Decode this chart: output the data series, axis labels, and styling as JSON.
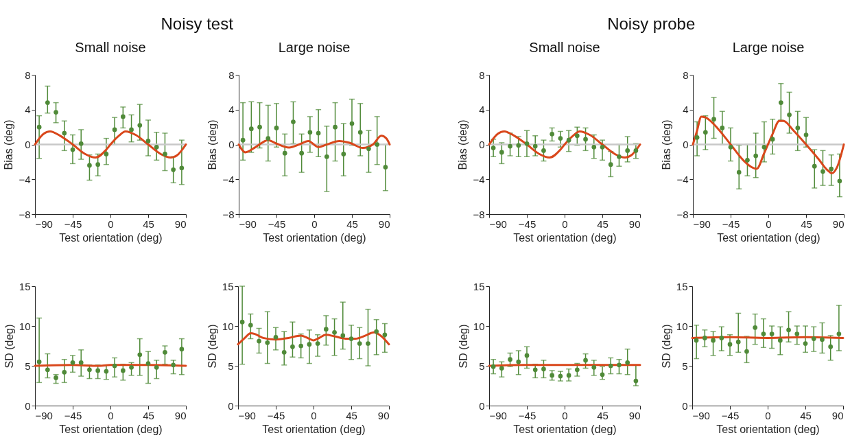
{
  "chart_data": [
    {
      "type": "scatter",
      "title": "Small noise",
      "annotations": [
        "Noisy test"
      ],
      "xlabel": "Test orientation (deg)",
      "ylabel": "Bias (deg)",
      "xlim": [
        -90,
        90
      ],
      "xticks": [
        -90,
        -45,
        0,
        45,
        90
      ],
      "ylim": [
        -8,
        8
      ],
      "yticks": [
        -8,
        -4,
        0,
        4,
        8
      ],
      "x": [
        -85,
        -75,
        -65,
        -55,
        -45,
        -35,
        -25,
        -15,
        -5,
        5,
        15,
        25,
        35,
        45,
        55,
        65,
        75,
        85
      ],
      "ref_lines": [
        {
          "axis": "y",
          "value": 0,
          "color": "#c8c8c8"
        }
      ],
      "series": [
        {
          "type": "scatter",
          "marker": "circle",
          "color": "#4f8a38",
          "values": [
            2.0,
            4.8,
            3.7,
            1.3,
            -0.6,
            0.1,
            -2.4,
            -2.3,
            -1.1,
            1.7,
            3.2,
            1.7,
            2.2,
            0.4,
            -0.3,
            -1.1,
            -2.9,
            -2.7
          ],
          "errors": [
            [
              -1.6,
              3.3
            ],
            [
              3.6,
              6.7
            ],
            [
              2.5,
              4.8
            ],
            [
              -0.7,
              2.7
            ],
            [
              -2.2,
              1.1
            ],
            [
              -1.7,
              1.7
            ],
            [
              -4.1,
              -1.2
            ],
            [
              -3.6,
              -1.1
            ],
            [
              -2.3,
              0.7
            ],
            [
              0,
              3.1
            ],
            [
              1.9,
              4.3
            ],
            [
              0.3,
              3.4
            ],
            [
              0.5,
              4.6
            ],
            [
              -1.3,
              2.8
            ],
            [
              -1.8,
              1.4
            ],
            [
              -3.0,
              1.3
            ],
            [
              -4.4,
              -1.4
            ],
            [
              -4.6,
              0.5
            ]
          ]
        },
        {
          "type": "line",
          "color": "#d9471b",
          "x": [
            -90,
            -80,
            -72,
            -60,
            -45,
            -30,
            -18,
            -5,
            0,
            10,
            18,
            30,
            45,
            60,
            72,
            80,
            90
          ],
          "values": [
            0,
            1.2,
            1.5,
            1.0,
            0,
            -1.1,
            -1.5,
            -0.6,
            0,
            1.0,
            1.5,
            1.1,
            0,
            -1.1,
            -1.5,
            -1.2,
            0
          ]
        }
      ]
    },
    {
      "type": "scatter",
      "title": "Large noise",
      "xlabel": "Test orientation (deg)",
      "ylabel": "Bias (deg)",
      "xlim": [
        -90,
        90
      ],
      "xticks": [
        -90,
        -45,
        0,
        45,
        90
      ],
      "ylim": [
        -8,
        8
      ],
      "yticks": [
        -8,
        -4,
        0,
        4,
        8
      ],
      "x": [
        -85,
        -75,
        -65,
        -55,
        -45,
        -35,
        -25,
        -15,
        -5,
        5,
        15,
        25,
        35,
        45,
        55,
        65,
        75,
        85
      ],
      "ref_lines": [
        {
          "axis": "y",
          "value": 0,
          "color": "#c8c8c8"
        }
      ],
      "series": [
        {
          "type": "scatter",
          "marker": "circle",
          "color": "#4f8a38",
          "values": [
            0.5,
            1.8,
            2.0,
            0.7,
            1.9,
            -1.0,
            2.6,
            -1.0,
            1.4,
            1.3,
            -1.4,
            2.0,
            -1.1,
            2.4,
            1.4,
            -0.5,
            0.0,
            -2.6
          ],
          "errors": [
            [
              -1.8,
              4.8
            ],
            [
              -0.9,
              4.9
            ],
            [
              -0.4,
              4.8
            ],
            [
              -1.9,
              4.5
            ],
            [
              -0.3,
              4.7
            ],
            [
              -3.6,
              1.2
            ],
            [
              0.1,
              4.9
            ],
            [
              -3.2,
              1.2
            ],
            [
              -0.9,
              3.2
            ],
            [
              -1.4,
              4.0
            ],
            [
              -5.4,
              2.1
            ],
            [
              -1.9,
              4.8
            ],
            [
              -3.6,
              2.4
            ],
            [
              -0.1,
              5.2
            ],
            [
              -1.3,
              4.7
            ],
            [
              -3.2,
              1.6
            ],
            [
              -2.3,
              3.2
            ],
            [
              -5.3,
              0
            ]
          ]
        },
        {
          "type": "line",
          "color": "#d9471b",
          "x": [
            -90,
            -82,
            -70,
            -55,
            -45,
            -30,
            -18,
            -7,
            5,
            15,
            30,
            42,
            58,
            70,
            80,
            86,
            90
          ],
          "values": [
            0,
            -0.9,
            -0.3,
            0.5,
            0.1,
            -0.35,
            0,
            0.4,
            -0.3,
            0,
            0.4,
            0.2,
            -0.4,
            0,
            1.0,
            0.7,
            0
          ]
        }
      ]
    },
    {
      "type": "scatter",
      "title": "Small noise",
      "annotations": [
        "Noisy probe"
      ],
      "xlabel": "Test orientation (deg)",
      "ylabel": "Bias (deg)",
      "xlim": [
        -90,
        90
      ],
      "xticks": [
        -90,
        -45,
        0,
        45,
        90
      ],
      "ylim": [
        -8,
        8
      ],
      "yticks": [
        -8,
        -4,
        0,
        4,
        8
      ],
      "x": [
        -85,
        -75,
        -65,
        -55,
        -45,
        -35,
        -25,
        -15,
        -5,
        5,
        15,
        25,
        35,
        45,
        55,
        65,
        75,
        85
      ],
      "ref_lines": [
        {
          "axis": "y",
          "value": 0,
          "color": "#c8c8c8"
        }
      ],
      "series": [
        {
          "type": "scatter",
          "marker": "circle",
          "color": "#4f8a38",
          "values": [
            -0.4,
            -0.9,
            -0.2,
            -0.1,
            0.1,
            -0.2,
            -0.7,
            1.2,
            0.7,
            0.5,
            1.0,
            0.6,
            -0.3,
            -0.3,
            -2.3,
            -1.4,
            -0.7,
            -0.7
          ],
          "errors": [
            [
              -1.4,
              0.6
            ],
            [
              -2.2,
              0.2
            ],
            [
              -1.3,
              1.3
            ],
            [
              -1.4,
              0.9
            ],
            [
              -1.4,
              1.6
            ],
            [
              -1.3,
              1.0
            ],
            [
              -1.9,
              0.5
            ],
            [
              0.4,
              1.9
            ],
            [
              -0.3,
              1.5
            ],
            [
              -0.8,
              1.6
            ],
            [
              -0.1,
              2.0
            ],
            [
              -0.7,
              1.9
            ],
            [
              -1.6,
              1.1
            ],
            [
              -1.8,
              0.5
            ],
            [
              -3.7,
              -0.8
            ],
            [
              -2.5,
              0
            ],
            [
              -2.0,
              0.9
            ],
            [
              -1.6,
              0.1
            ]
          ]
        },
        {
          "type": "line",
          "color": "#d9471b",
          "x": [
            -90,
            -80,
            -72,
            -60,
            -45,
            -30,
            -18,
            -5,
            0,
            10,
            18,
            30,
            45,
            60,
            72,
            80,
            90
          ],
          "values": [
            0,
            1.2,
            1.5,
            1.0,
            0,
            -1.1,
            -1.5,
            -0.6,
            0,
            1.0,
            1.5,
            1.1,
            0,
            -1.1,
            -1.5,
            -1.2,
            0
          ]
        }
      ]
    },
    {
      "type": "scatter",
      "title": "Large noise",
      "xlabel": "Test orientation (deg)",
      "ylabel": "Bias (deg)",
      "xlim": [
        -90,
        90
      ],
      "xticks": [
        -90,
        -45,
        0,
        45,
        90
      ],
      "ylim": [
        -8,
        8
      ],
      "yticks": [
        -8,
        -4,
        0,
        4,
        8
      ],
      "x": [
        -85,
        -75,
        -65,
        -55,
        -45,
        -35,
        -25,
        -15,
        -5,
        5,
        15,
        25,
        35,
        45,
        55,
        65,
        75,
        85
      ],
      "ref_lines": [
        {
          "axis": "y",
          "value": 0,
          "color": "#c8c8c8"
        }
      ],
      "series": [
        {
          "type": "scatter",
          "marker": "circle",
          "color": "#4f8a38",
          "values": [
            0.8,
            1.4,
            2.9,
            1.9,
            -0.3,
            -3.2,
            -1.8,
            -1.3,
            -0.3,
            0.6,
            4.8,
            3.4,
            1.9,
            1.1,
            -2.5,
            -3.1,
            -2.8,
            -4.2
          ],
          "errors": [
            [
              -1.3,
              2.6
            ],
            [
              -0.6,
              3.3
            ],
            [
              0.7,
              5.4
            ],
            [
              0,
              3.8
            ],
            [
              -1.9,
              1.9
            ],
            [
              -5.1,
              -0.1
            ],
            [
              -3.6,
              0
            ],
            [
              -3.8,
              1.3
            ],
            [
              -2.0,
              2.6
            ],
            [
              -1.1,
              2.9
            ],
            [
              2.8,
              7.0
            ],
            [
              1.3,
              6.0
            ],
            [
              -0.7,
              3.8
            ],
            [
              -0.3,
              3.1
            ],
            [
              -5.0,
              -0.6
            ],
            [
              -4.7,
              -0.7
            ],
            [
              -4.7,
              -1.2
            ],
            [
              -6.0,
              -1.1
            ]
          ]
        },
        {
          "type": "line",
          "color": "#d9471b",
          "x": [
            -90,
            -85,
            -80,
            -75,
            -60,
            -45,
            -30,
            -20,
            -14,
            -5,
            5,
            13,
            18,
            30,
            45,
            60,
            70,
            76,
            82,
            90
          ],
          "values": [
            0,
            1.6,
            3.2,
            3.1,
            1.8,
            0,
            -1.8,
            -2.6,
            -2.8,
            -1.0,
            1.2,
            2.7,
            2.7,
            1.6,
            0,
            -1.7,
            -2.9,
            -3.3,
            -2.6,
            0
          ]
        }
      ]
    },
    {
      "type": "scatter",
      "xlabel": "Test orientation (deg)",
      "ylabel": "SD (deg)",
      "xlim": [
        -90,
        90
      ],
      "xticks": [
        -90,
        -45,
        0,
        45,
        90
      ],
      "ylim": [
        0,
        15
      ],
      "yticks": [
        0,
        5,
        10,
        15
      ],
      "x": [
        -85,
        -75,
        -65,
        -55,
        -45,
        -35,
        -25,
        -15,
        -5,
        5,
        15,
        25,
        35,
        45,
        55,
        65,
        75,
        85
      ],
      "series": [
        {
          "type": "scatter",
          "marker": "circle",
          "color": "#4f8a38",
          "values": [
            5.5,
            4.5,
            3.5,
            4.2,
            5.4,
            5.4,
            4.5,
            4.4,
            4.3,
            5.0,
            4.4,
            4.8,
            6.4,
            5.3,
            4.8,
            6.7,
            5.1,
            7.1
          ],
          "errors": [
            [
              2.9,
              11.0
            ],
            [
              3.5,
              6.5
            ],
            [
              2.8,
              3.9
            ],
            [
              2.9,
              5.8
            ],
            [
              4.2,
              6.3
            ],
            [
              3.7,
              7.0
            ],
            [
              3.4,
              5.1
            ],
            [
              3.4,
              5.1
            ],
            [
              3.3,
              5.1
            ],
            [
              3.6,
              6.0
            ],
            [
              3.2,
              5.2
            ],
            [
              3.8,
              5.4
            ],
            [
              3.8,
              8.4
            ],
            [
              2.8,
              6.8
            ],
            [
              3.4,
              5.7
            ],
            [
              5.2,
              7.5
            ],
            [
              4.0,
              5.7
            ],
            [
              3.9,
              8.4
            ]
          ]
        },
        {
          "type": "line",
          "color": "#d9471b",
          "x": [
            -90,
            -45,
            -15,
            0,
            45,
            90
          ],
          "values": [
            5.0,
            5.1,
            5.0,
            5.1,
            5.1,
            5.0
          ]
        }
      ]
    },
    {
      "type": "scatter",
      "xlabel": "Test orientation (deg)",
      "ylabel": "SD (deg)",
      "xlim": [
        -90,
        90
      ],
      "xticks": [
        -90,
        -45,
        0,
        45,
        90
      ],
      "ylim": [
        0,
        15
      ],
      "yticks": [
        0,
        5,
        10,
        15
      ],
      "x": [
        -85,
        -75,
        -65,
        -55,
        -45,
        -35,
        -25,
        -15,
        -5,
        5,
        15,
        25,
        35,
        45,
        55,
        65,
        75,
        85
      ],
      "series": [
        {
          "type": "scatter",
          "marker": "circle",
          "color": "#4f8a38",
          "values": [
            10.5,
            10.1,
            8.1,
            7.9,
            8.6,
            6.7,
            7.4,
            7.5,
            7.7,
            7.8,
            9.6,
            9.2,
            8.8,
            8.4,
            7.8,
            7.8,
            9.3,
            8.9
          ],
          "errors": [
            [
              5.2,
              15
            ],
            [
              8.4,
              11.5
            ],
            [
              6.6,
              9.7
            ],
            [
              5.3,
              11.8
            ],
            [
              7.0,
              9.8
            ],
            [
              5.1,
              9.3
            ],
            [
              6.1,
              10.5
            ],
            [
              6.0,
              9.0
            ],
            [
              5.3,
              9.5
            ],
            [
              6.2,
              8.9
            ],
            [
              7.6,
              11.3
            ],
            [
              6.3,
              10.9
            ],
            [
              7.1,
              13.0
            ],
            [
              5.8,
              10.1
            ],
            [
              5.9,
              9.8
            ],
            [
              5.0,
              12.1
            ],
            [
              6.4,
              10.8
            ],
            [
              6.7,
              10.3
            ]
          ]
        },
        {
          "type": "line",
          "color": "#d9471b",
          "x": [
            -90,
            -82,
            -75,
            -70,
            -60,
            -45,
            -30,
            -15,
            -5,
            0,
            5,
            15,
            25,
            40,
            50,
            62,
            72,
            80,
            90
          ],
          "values": [
            7.7,
            8.5,
            9.1,
            9.0,
            8.5,
            8.3,
            8.5,
            8.8,
            8.4,
            8.2,
            8.4,
            8.9,
            8.7,
            8.4,
            8.4,
            8.8,
            9.2,
            8.8,
            7.7
          ]
        }
      ]
    },
    {
      "type": "scatter",
      "xlabel": "Test orientation (deg)",
      "ylabel": "SD (deg)",
      "xlim": [
        -90,
        90
      ],
      "xticks": [
        -90,
        -45,
        0,
        45,
        90
      ],
      "ylim": [
        0,
        15
      ],
      "yticks": [
        0,
        5,
        10,
        15
      ],
      "x": [
        -85,
        -75,
        -65,
        -55,
        -45,
        -35,
        -25,
        -15,
        -5,
        5,
        15,
        25,
        35,
        45,
        55,
        65,
        75,
        85
      ],
      "series": [
        {
          "type": "scatter",
          "marker": "circle",
          "color": "#4f8a38",
          "values": [
            4.9,
            4.7,
            5.8,
            5.5,
            6.3,
            4.5,
            4.6,
            3.8,
            3.7,
            3.8,
            4.5,
            5.7,
            4.8,
            3.9,
            5.0,
            5.1,
            5.4,
            3.1
          ],
          "errors": [
            [
              4.0,
              5.8
            ],
            [
              3.6,
              5.5
            ],
            [
              4.9,
              6.6
            ],
            [
              3.9,
              6.9
            ],
            [
              4.7,
              7.4
            ],
            [
              3.5,
              5.2
            ],
            [
              3.5,
              5.7
            ],
            [
              3.2,
              4.4
            ],
            [
              3.1,
              4.3
            ],
            [
              3.1,
              4.6
            ],
            [
              3.7,
              5.3
            ],
            [
              4.7,
              6.5
            ],
            [
              3.8,
              5.7
            ],
            [
              3.3,
              4.9
            ],
            [
              4.0,
              6.0
            ],
            [
              4.0,
              5.8
            ],
            [
              3.9,
              7.1
            ],
            [
              2.5,
              5.1
            ]
          ]
        },
        {
          "type": "line",
          "color": "#d9471b",
          "x": [
            -90,
            -45,
            0,
            45,
            90
          ],
          "values": [
            5.0,
            5.1,
            5.1,
            5.1,
            5.1
          ]
        }
      ]
    },
    {
      "type": "scatter",
      "xlabel": "Test orientation (deg)",
      "ylabel": "SD (deg)",
      "xlim": [
        -90,
        90
      ],
      "xticks": [
        -90,
        -45,
        0,
        45,
        90
      ],
      "ylim": [
        0,
        15
      ],
      "yticks": [
        0,
        5,
        10,
        15
      ],
      "x": [
        -85,
        -75,
        -65,
        -55,
        -45,
        -35,
        -25,
        -15,
        -5,
        5,
        15,
        25,
        35,
        45,
        55,
        65,
        75,
        85
      ],
      "series": [
        {
          "type": "scatter",
          "marker": "circle",
          "color": "#4f8a38",
          "values": [
            8.2,
            8.5,
            8.2,
            8.5,
            7.7,
            8.0,
            6.8,
            9.8,
            9.0,
            9.0,
            8.2,
            9.5,
            9.0,
            7.8,
            8.4,
            8.3,
            7.4,
            9.0
          ],
          "errors": [
            [
              5.9,
              10.1
            ],
            [
              7.4,
              9.5
            ],
            [
              6.3,
              9.3
            ],
            [
              6.9,
              9.9
            ],
            [
              6.3,
              8.9
            ],
            [
              6.7,
              11.6
            ],
            [
              5.4,
              8.7
            ],
            [
              7.7,
              11.5
            ],
            [
              7.3,
              10.9
            ],
            [
              7.2,
              10.0
            ],
            [
              6.4,
              9.9
            ],
            [
              8.0,
              11.8
            ],
            [
              7.7,
              10.0
            ],
            [
              6.7,
              10.0
            ],
            [
              6.8,
              9.9
            ],
            [
              6.6,
              10.4
            ],
            [
              5.7,
              8.8
            ],
            [
              6.9,
              12.6
            ]
          ]
        },
        {
          "type": "line",
          "color": "#d9471b",
          "x": [
            -90,
            -45,
            0,
            45,
            90
          ],
          "values": [
            8.5,
            8.6,
            8.5,
            8.6,
            8.5
          ]
        }
      ]
    }
  ]
}
